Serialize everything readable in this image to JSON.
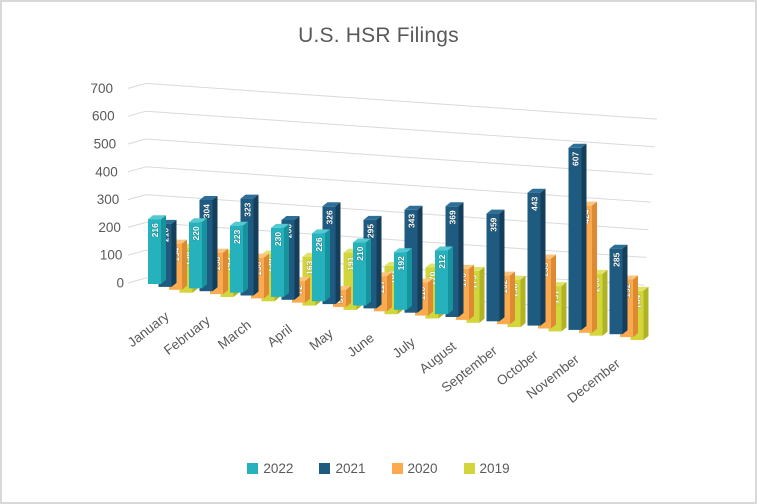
{
  "window": {
    "background": "#ffffff",
    "border_color": "#d9d9d9"
  },
  "title": "U.S. HSR Filings",
  "title_color": "#595959",
  "axis": {
    "label_color": "#595959",
    "grid_color": "#d9d9d9"
  },
  "chart_data": {
    "type": "bar",
    "style": "3d-column",
    "title": "U.S. HSR Filings",
    "categories": [
      "January",
      "February",
      "March",
      "April",
      "May",
      "June",
      "July",
      "August",
      "September",
      "October",
      "November",
      "December"
    ],
    "series": [
      {
        "name": "2022",
        "colors": {
          "front": "#25b2bd",
          "side": "#17939e",
          "top": "#55c9d1"
        },
        "values": [
          216,
          220,
          223,
          230,
          226,
          210,
          192,
          212,
          null,
          null,
          null,
          null
        ]
      },
      {
        "name": "2021",
        "colors": {
          "front": "#1f5b80",
          "side": "#143e59",
          "top": "#2d6f97"
        },
        "values": [
          210,
          304,
          323,
          266,
          326,
          295,
          343,
          369,
          359,
          443,
          607,
          285
        ]
      },
      {
        "name": "2020",
        "colors": {
          "front": "#fbaa50",
          "side": "#dd8a33",
          "top": "#fcc47f"
        },
        "values": [
          154,
          138,
          136,
          72,
          57,
          117,
          110,
          170,
          162,
          233,
          424,
          192
        ]
      },
      {
        "name": "2019",
        "colors": {
          "front": "#d2d63a",
          "side": "#b0b424",
          "top": "#e0e369"
        },
        "values": [
          150,
          145,
          156,
          163,
          191,
          161,
          170,
          173,
          158,
          151,
          206,
          164
        ]
      }
    ],
    "ylim": [
      0,
      700
    ],
    "yticks": [
      0,
      100,
      200,
      300,
      400,
      500,
      600,
      700
    ],
    "legend": {
      "position": "bottom",
      "entries": [
        "2022",
        "2021",
        "2020",
        "2019"
      ]
    },
    "grid": true,
    "value_labels": "white-rotated-90-on-bars"
  }
}
